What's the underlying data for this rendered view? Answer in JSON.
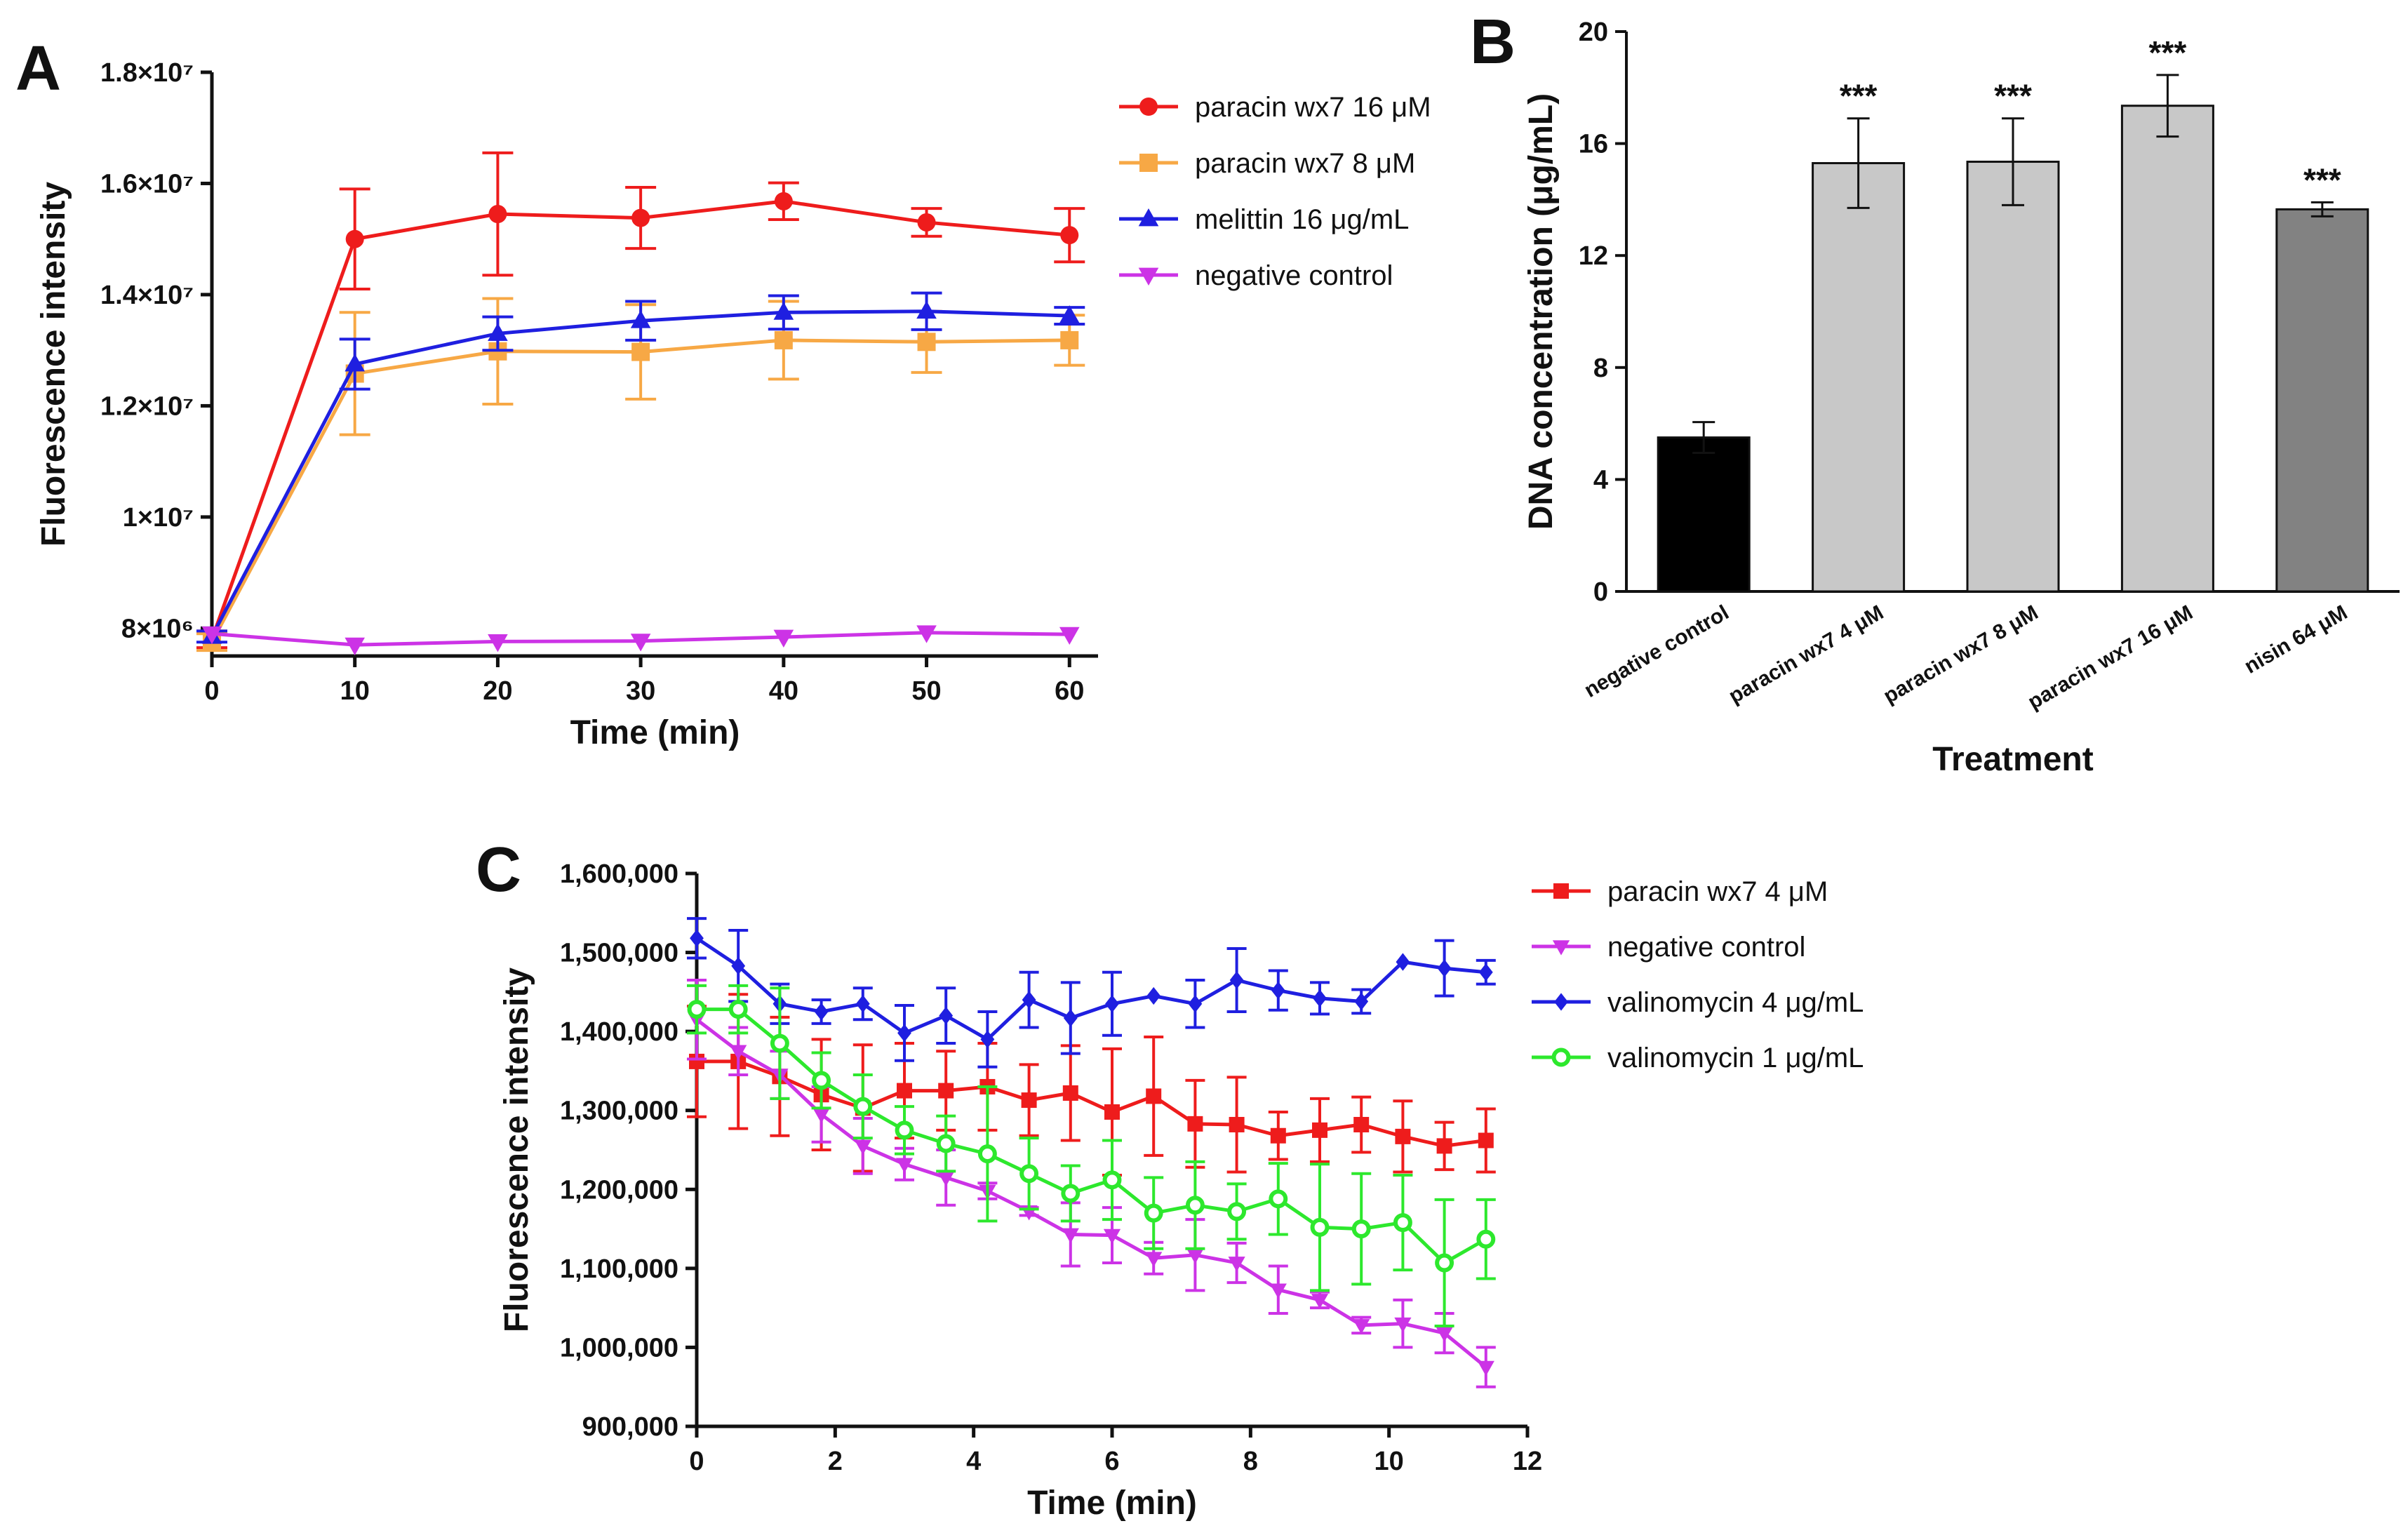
{
  "chart_data": [
    {
      "panel": "A",
      "type": "line",
      "xlabel": "Time (min)",
      "ylabel": "Fluorescence intensity",
      "xlim": [
        0,
        62
      ],
      "ylim": [
        7500000,
        18000000
      ],
      "x_ticks": [
        0,
        10,
        20,
        30,
        40,
        50,
        60
      ],
      "x_tick_labels": [
        "0",
        "10",
        "20",
        "30",
        "40",
        "50",
        "60"
      ],
      "y_ticks": [
        8000000,
        10000000,
        12000000,
        14000000,
        16000000,
        18000000
      ],
      "y_tick_labels": [
        "8×10⁶",
        "1×10⁷",
        "1.2×10⁷",
        "1.4×10⁷",
        "1.6×10⁷",
        "1.8×10⁷"
      ],
      "legend_position": "right",
      "series": [
        {
          "name": "paracin wx7 16 μM",
          "color": "#ee1c1c",
          "marker": "circle",
          "x": [
            0,
            10,
            20,
            30,
            40,
            50,
            60
          ],
          "values": [
            7800000,
            15000000,
            15450000,
            15380000,
            15680000,
            15300000,
            15070000
          ],
          "errors": [
            150000,
            900000,
            1100000,
            550000,
            330000,
            250000,
            480000
          ]
        },
        {
          "name": "paracin wx7 8 μM",
          "color": "#f7a845",
          "marker": "square",
          "x": [
            0,
            10,
            20,
            30,
            40,
            50,
            60
          ],
          "values": [
            7750000,
            12580000,
            12980000,
            12970000,
            13180000,
            13150000,
            13180000
          ],
          "errors": [
            150000,
            1100000,
            950000,
            850000,
            700000,
            550000,
            450000
          ]
        },
        {
          "name": "melittin 16 μg/mL",
          "color": "#1f1fe0",
          "marker": "triangle",
          "x": [
            0,
            10,
            20,
            30,
            40,
            50,
            60
          ],
          "values": [
            7850000,
            12750000,
            13300000,
            13530000,
            13680000,
            13700000,
            13620000
          ],
          "errors": [
            100000,
            450000,
            300000,
            350000,
            300000,
            330000,
            150000
          ]
        },
        {
          "name": "negative control",
          "color": "#cc33e6",
          "marker": "triangle-down",
          "x": [
            0,
            10,
            20,
            30,
            40,
            50,
            60
          ],
          "values": [
            7900000,
            7700000,
            7760000,
            7770000,
            7840000,
            7920000,
            7890000
          ],
          "errors": [
            0,
            0,
            0,
            0,
            0,
            0,
            0
          ]
        }
      ]
    },
    {
      "panel": "B",
      "type": "bar",
      "xlabel": "Treatment",
      "ylabel": "DNA concentration (μg/mL)",
      "ylim": [
        0,
        20
      ],
      "y_ticks": [
        0,
        4,
        8,
        12,
        16,
        20
      ],
      "y_tick_labels": [
        "0",
        "4",
        "8",
        "12",
        "16",
        "20"
      ],
      "categories": [
        "negative control",
        "paracin wx7 4 μM",
        "paracin wx7 8 μM",
        "paracin wx7 16 μM",
        "nisin 64 μM"
      ],
      "values": [
        5.5,
        15.3,
        15.35,
        17.35,
        13.65
      ],
      "errors": [
        0.55,
        1.6,
        1.55,
        1.1,
        0.25
      ],
      "bar_colors": [
        "#000000",
        "#c8c8c8",
        "#c8c8c8",
        "#c8c8c8",
        "#828282"
      ],
      "annotations": [
        "",
        "***",
        "***",
        "***",
        "***"
      ]
    },
    {
      "panel": "C",
      "type": "line",
      "xlabel": "Time (min)",
      "ylabel": "Fluorescence intensity",
      "xlim": [
        0,
        12
      ],
      "ylim": [
        900000,
        1600000
      ],
      "x_ticks": [
        0,
        2,
        4,
        6,
        8,
        10,
        12
      ],
      "x_tick_labels": [
        "0",
        "2",
        "4",
        "6",
        "8",
        "10",
        "12"
      ],
      "y_ticks": [
        900000,
        1000000,
        1100000,
        1200000,
        1300000,
        1400000,
        1500000,
        1600000
      ],
      "y_tick_labels": [
        "900,000",
        "1,000,000",
        "1,100,000",
        "1,200,000",
        "1,300,000",
        "1,400,000",
        "1,500,000",
        "1,600,000"
      ],
      "legend_position": "right",
      "x": [
        0,
        0.6,
        1.2,
        1.8,
        2.4,
        3.0,
        3.6,
        4.2,
        4.8,
        5.4,
        6.0,
        6.6,
        7.2,
        7.8,
        8.4,
        9.0,
        9.6,
        10.2,
        10.8,
        11.4
      ],
      "series": [
        {
          "name": "paracin wx7 4 μM",
          "color": "#ee1c1c",
          "marker": "square",
          "values": [
            1362000,
            1362000,
            1343000,
            1320000,
            1303000,
            1325000,
            1325000,
            1330000,
            1313000,
            1322000,
            1298000,
            1318000,
            1283000,
            1282000,
            1268000,
            1275000,
            1282000,
            1267000,
            1255000,
            1262000
          ],
          "errors": [
            70000,
            85000,
            75000,
            70000,
            80000,
            60000,
            50000,
            55000,
            45000,
            60000,
            80000,
            75000,
            55000,
            60000,
            30000,
            40000,
            35000,
            45000,
            30000,
            40000
          ]
        },
        {
          "name": "negative control",
          "color": "#cc33e6",
          "marker": "triangle-down",
          "values": [
            1415000,
            1375000,
            1345000,
            1295000,
            1255000,
            1232000,
            1215000,
            1198000,
            1172000,
            1143000,
            1142000,
            1113000,
            1117000,
            1107000,
            1073000,
            1060000,
            1028000,
            1030000,
            1018000,
            975000
          ],
          "errors": [
            50000,
            30000,
            30000,
            35000,
            35000,
            20000,
            35000,
            10000,
            5000,
            40000,
            35000,
            20000,
            45000,
            25000,
            30000,
            10000,
            10000,
            30000,
            25000,
            25000
          ]
        },
        {
          "name": "valinomycin 4 μg/mL",
          "color": "#1f1fe0",
          "marker": "diamond",
          "values": [
            1518000,
            1483000,
            1435000,
            1425000,
            1435000,
            1398000,
            1420000,
            1390000,
            1440000,
            1417000,
            1435000,
            1445000,
            1435000,
            1465000,
            1452000,
            1442000,
            1438000,
            1488000,
            1480000,
            1475000
          ],
          "errors": [
            25000,
            45000,
            25000,
            15000,
            20000,
            35000,
            35000,
            35000,
            35000,
            45000,
            40000,
            0,
            30000,
            40000,
            25000,
            20000,
            15000,
            0,
            35000,
            15000
          ]
        },
        {
          "name": "valinomycin 1 μg/mL",
          "color": "#2de82d",
          "marker": "circle-open",
          "values": [
            1428000,
            1428000,
            1385000,
            1338000,
            1305000,
            1275000,
            1258000,
            1245000,
            1220000,
            1195000,
            1212000,
            1170000,
            1180000,
            1172000,
            1188000,
            1152000,
            1150000,
            1158000,
            1107000,
            1137000
          ],
          "errors": [
            30000,
            30000,
            70000,
            35000,
            40000,
            30000,
            35000,
            85000,
            45000,
            35000,
            50000,
            45000,
            55000,
            35000,
            45000,
            80000,
            70000,
            60000,
            80000,
            50000
          ]
        }
      ]
    }
  ]
}
